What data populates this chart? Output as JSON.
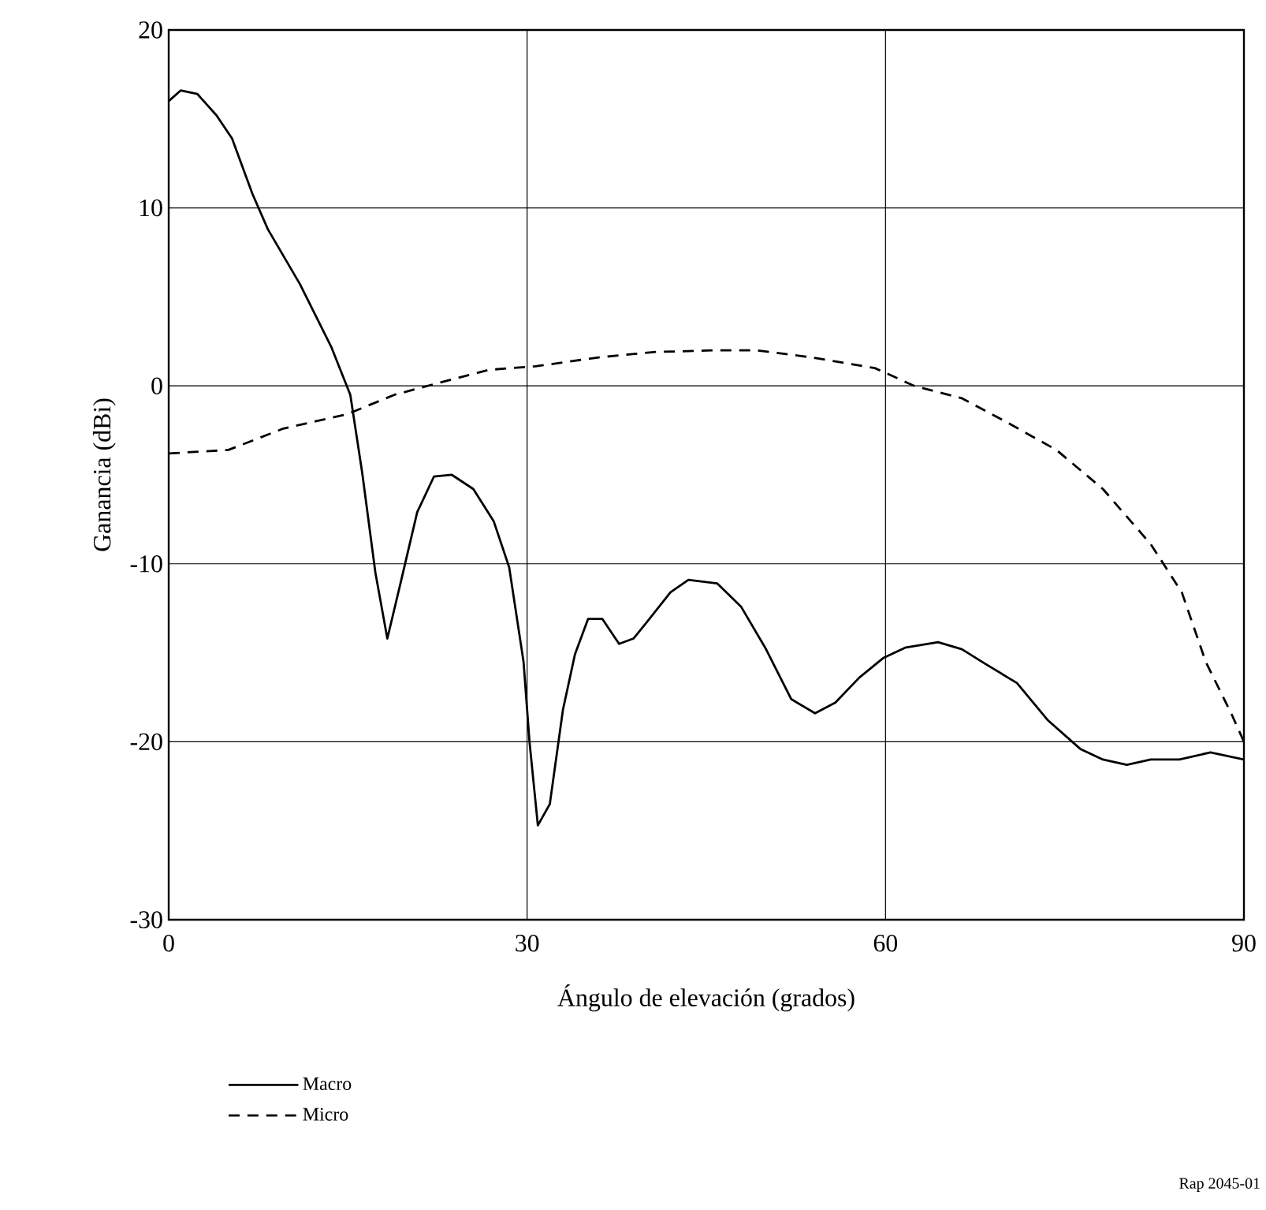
{
  "chart_data": {
    "type": "line",
    "xlabel": "Ángulo de elevación (grados)",
    "ylabel": "Ganancia (dBi)",
    "xlim": [
      0,
      90
    ],
    "xticks": [
      0,
      30,
      60,
      90
    ],
    "ylim": [
      -30,
      20
    ],
    "yticks": [
      -30,
      -20,
      -10,
      0,
      10,
      20
    ],
    "grid": true,
    "legend": "bottom",
    "marker": "none",
    "annotations": [
      "Rap 2045-01"
    ],
    "series": [
      {
        "name": "Macro",
        "color": "#000000",
        "line_style": "solid",
        "x": [
          0,
          1,
          2.4,
          4,
          5.3,
          7,
          8.3,
          11,
          13.6,
          15.2,
          16.2,
          17.3,
          18.3,
          19.4,
          20.8,
          22.2,
          23.7,
          25.5,
          27.2,
          28.5,
          29.7,
          30.2,
          30.9,
          31.9,
          33,
          34,
          35.1,
          36.3,
          37.7,
          38.9,
          40,
          42,
          43.5,
          45.9,
          47.9,
          50,
          52.1,
          54.1,
          55.8,
          57.8,
          59.8,
          61.7,
          64.4,
          66.4,
          68.3,
          71,
          73.6,
          76.3,
          78.2,
          80.2,
          82.2,
          84.6,
          87.2,
          90
        ],
        "values": [
          16,
          16.6,
          16.4,
          15.2,
          13.9,
          10.8,
          8.8,
          5.7,
          2.2,
          -0.5,
          -4.9,
          -10.5,
          -14.2,
          -11.1,
          -7.1,
          -5.1,
          -5,
          -5.8,
          -7.6,
          -10.2,
          -15.5,
          -20,
          -24.7,
          -23.5,
          -18.2,
          -15.1,
          -13.1,
          -13.1,
          -14.5,
          -14.2,
          -13.3,
          -11.6,
          -10.9,
          -11.1,
          -12.4,
          -14.8,
          -17.6,
          -18.4,
          -17.8,
          -16.4,
          -15.3,
          -14.7,
          -14.4,
          -14.8,
          -15.6,
          -16.7,
          -18.8,
          -20.4,
          -21,
          -21.3,
          -21,
          -21,
          -20.6,
          -21
        ]
      },
      {
        "name": "Micro",
        "color": "#000000",
        "line_style": "dashed",
        "x": [
          0,
          5,
          9.6,
          14.9,
          18.9,
          22.8,
          26.8,
          30.7,
          36,
          40.6,
          45.9,
          49.2,
          53.8,
          59.1,
          62.4,
          66.4,
          70.3,
          74.3,
          78.2,
          82.2,
          84.8,
          86.8,
          89,
          90
        ],
        "values": [
          -3.8,
          -3.6,
          -2.4,
          -1.6,
          -0.5,
          0.2,
          0.9,
          1.1,
          1.6,
          1.9,
          2,
          2,
          1.6,
          1,
          0,
          -0.7,
          -2.1,
          -3.6,
          -5.8,
          -8.9,
          -11.6,
          -15.5,
          -18.5,
          -20
        ]
      }
    ]
  }
}
